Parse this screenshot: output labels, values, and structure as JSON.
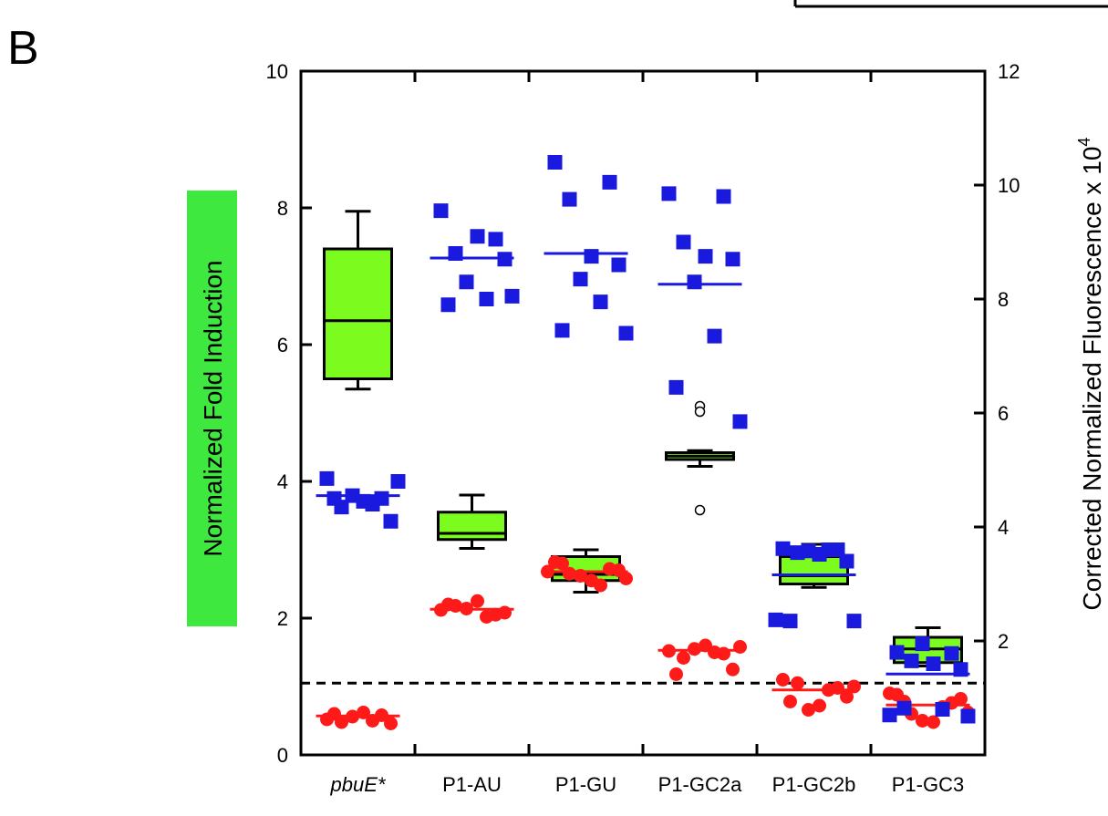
{
  "panel_letter": "B",
  "colors": {
    "box_fill": "#7cfc1e",
    "box_stroke": "#000000",
    "fold_induction_points": "#ff1a1a",
    "fluorescence_points": "#1a1adf",
    "fold_induction_mean_line": "#ff1a1a",
    "fluorescence_mean_line": "#1a1adf",
    "ylabel_highlight": "#3fe83f"
  },
  "chart_data": {
    "type": "scatter",
    "categories": [
      "pbuE*",
      "P1-AU",
      "P1-GU",
      "P1-GC2a",
      "P1-GC2b",
      "P1-GC3"
    ],
    "category_italic": [
      true,
      false,
      false,
      false,
      false,
      false
    ],
    "ylabel": "Normalized Fold Induction",
    "ylabel_right_main": "Corrected Normalized Fluorescence x 10",
    "ylabel_right_sup": "4",
    "ylim": [
      0,
      10
    ],
    "ylim_right": [
      0,
      12
    ],
    "yticks": [
      0,
      2,
      4,
      6,
      8,
      10
    ],
    "yticks_right": [
      2,
      4,
      6,
      8,
      10,
      12
    ],
    "reference_line": {
      "y": 1.05,
      "style": "dashed"
    },
    "boxplots": [
      {
        "category": "pbuE*",
        "whisker_low": 5.35,
        "q1": 5.5,
        "median": 6.35,
        "q3": 7.4,
        "whisker_high": 7.95,
        "outliers": []
      },
      {
        "category": "P1-AU",
        "whisker_low": 3.02,
        "q1": 3.15,
        "median": 3.24,
        "q3": 3.55,
        "whisker_high": 3.8,
        "outliers": []
      },
      {
        "category": "P1-GU",
        "whisker_low": 2.38,
        "q1": 2.55,
        "median": 2.64,
        "q3": 2.9,
        "whisker_high": 3.0,
        "outliers": []
      },
      {
        "category": "P1-GC2a",
        "whisker_low": 4.22,
        "q1": 4.32,
        "median": 4.37,
        "q3": 4.42,
        "whisker_high": 4.45,
        "outliers": [
          5.1,
          5.02,
          3.58
        ]
      },
      {
        "category": "P1-GC2b",
        "whisker_low": 2.45,
        "q1": 2.5,
        "median": 2.62,
        "q3": 2.9,
        "whisker_high": 3.08,
        "outliers": []
      },
      {
        "category": "P1-GC3",
        "whisker_low": 1.3,
        "q1": 1.35,
        "median": 1.55,
        "q3": 1.72,
        "whisker_high": 1.86,
        "outliers": []
      }
    ],
    "series": [
      {
        "axis": "left",
        "marker": "circle",
        "values": [
          [
            0.52,
            0.58,
            0.48,
            0.62,
            0.46,
            0.56,
            0.5,
            0.6
          ],
          [
            2.12,
            2.05,
            2.18,
            2.25,
            2.08,
            2.14,
            2.02,
            2.2
          ],
          [
            2.82,
            2.72,
            2.65,
            2.55,
            2.7,
            2.62,
            2.48,
            2.8,
            2.58,
            2.68
          ],
          [
            1.52,
            1.48,
            1.42,
            1.6,
            1.25,
            1.55,
            1.5,
            1.18,
            1.58
          ],
          [
            1.1,
            0.98,
            1.05,
            0.72,
            0.85,
            0.66,
            0.95,
            0.78,
            1.0
          ],
          [
            0.88,
            0.76,
            0.6,
            0.48,
            0.82,
            0.5,
            0.7,
            0.78,
            0.62,
            0.9
          ]
        ],
        "means": [
          0.57,
          2.13,
          2.68,
          1.53,
          0.95,
          0.73
        ]
      },
      {
        "axis": "right",
        "marker": "square",
        "values": [
          [
            4.85,
            4.5,
            4.35,
            4.45,
            4.1,
            4.55,
            4.4,
            4.5,
            4.8
          ],
          [
            9.55,
            9.05,
            8.8,
            9.1,
            8.7,
            8.3,
            8.0,
            7.9,
            8.05
          ],
          [
            10.4,
            10.05,
            9.75,
            8.75,
            8.6,
            8.35,
            7.95,
            7.45,
            7.4
          ],
          [
            9.85,
            9.8,
            9.0,
            8.75,
            8.7,
            8.3,
            7.35,
            6.45,
            5.85
          ],
          [
            3.62,
            3.6,
            3.55,
            3.52,
            3.4,
            3.58,
            3.6,
            2.35,
            2.35,
            2.37
          ],
          [
            1.8,
            1.78,
            1.65,
            1.6,
            1.5,
            1.95,
            0.8,
            0.82,
            0.68,
            0.7
          ]
        ],
        "means": [
          4.55,
          8.72,
          8.8,
          8.26,
          3.16,
          1.42
        ]
      }
    ]
  }
}
